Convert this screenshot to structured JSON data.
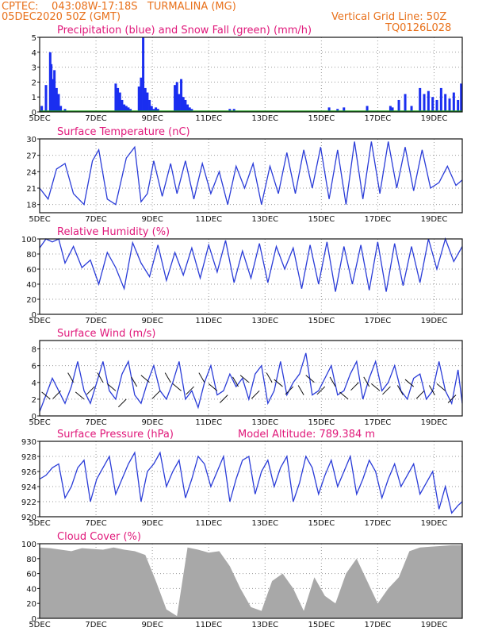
{
  "header": {
    "line1": "CPTEC:    043:08W-17:18S   TURMALINA (MG)",
    "line2": "05DEC2020 50Z (GMT)",
    "grid_note": "Vertical Grid Line: 50Z",
    "model_id": "TQ0126L028"
  },
  "colors": {
    "title_orange": "#e8701a",
    "panel_title": "#e0187a",
    "line": "#2a3cd8",
    "precip": "#1a2ef0",
    "snow": "#1aa01a",
    "cloud": "#a8a8a8",
    "grid": "#9a9a9a"
  },
  "chart_data": [
    {
      "type": "bar",
      "title": "Precipitation (blue) and Snow Fall (green) (mm/h)",
      "yticks": [
        "5",
        "4",
        "3",
        "2",
        "1",
        "0"
      ],
      "ylim": [
        0,
        5
      ],
      "xticks": [
        "5DEC",
        "7DEC",
        "9DEC",
        "11DEC",
        "13DEC",
        "15DEC",
        "17DEC",
        "19DEC"
      ],
      "grid": true,
      "series": [
        {
          "name": "Precipitation",
          "x": [
            0.1,
            0.3,
            0.5,
            0.55,
            0.65,
            0.7,
            0.75,
            0.8,
            0.85,
            0.9,
            1.0,
            1.2,
            3.6,
            3.7,
            3.8,
            3.9,
            4.0,
            4.1,
            4.2,
            4.3,
            4.7,
            4.8,
            4.9,
            5.0,
            5.1,
            5.2,
            5.3,
            5.4,
            5.5,
            5.6,
            6.4,
            6.5,
            6.6,
            6.7,
            6.8,
            6.9,
            7.0,
            7.1,
            7.2,
            9.0,
            9.2,
            13.7,
            14.1,
            14.4,
            15.5,
            16.6,
            16.7,
            17.0,
            17.3,
            17.6,
            18.0,
            18.2,
            18.4,
            18.6,
            18.8,
            19.0,
            19.2,
            19.4,
            19.6,
            19.8,
            19.95
          ],
          "values": [
            0.4,
            1.8,
            4.0,
            3.2,
            2.2,
            2.8,
            1.4,
            1.6,
            0.9,
            1.2,
            0.4,
            0.2,
            1.9,
            1.6,
            1.3,
            0.8,
            0.5,
            0.4,
            0.3,
            0.2,
            1.7,
            2.3,
            5.0,
            1.6,
            1.3,
            0.8,
            0.4,
            0.2,
            0.3,
            0.2,
            1.8,
            2.0,
            1.2,
            2.2,
            1.0,
            0.8,
            0.5,
            0.3,
            0.2,
            0.2,
            0.2,
            0.3,
            0.2,
            0.3,
            0.4,
            0.4,
            0.3,
            0.8,
            1.2,
            0.4,
            1.6,
            1.2,
            1.4,
            1.0,
            0.8,
            1.6,
            1.2,
            0.9,
            1.3,
            0.8,
            1.9
          ]
        },
        {
          "name": "Snow Fall",
          "x": [
            0,
            20
          ],
          "values": [
            0,
            0
          ]
        }
      ]
    },
    {
      "type": "line",
      "title": "Surface Temperature (nC)",
      "yticks": [
        "30",
        "27",
        "24",
        "21",
        "18"
      ],
      "ylim": [
        16.5,
        30
      ],
      "xticks": [
        "5DEC",
        "7DEC",
        "9DEC",
        "11DEC",
        "13DEC",
        "15DEC",
        "17DEC",
        "19DEC"
      ],
      "grid": true,
      "series": [
        {
          "name": "Temperature",
          "x": [
            0,
            0.4,
            0.8,
            1.2,
            1.6,
            2.1,
            2.5,
            2.8,
            3.2,
            3.6,
            4.1,
            4.5,
            4.8,
            5.1,
            5.4,
            5.8,
            6.2,
            6.5,
            6.9,
            7.3,
            7.7,
            8.1,
            8.5,
            8.9,
            9.3,
            9.7,
            10.1,
            10.5,
            10.9,
            11.3,
            11.7,
            12.1,
            12.5,
            12.9,
            13.3,
            13.7,
            14.1,
            14.5,
            14.9,
            15.3,
            15.7,
            16.1,
            16.5,
            16.9,
            17.3,
            17.7,
            18.1,
            18.5,
            18.9,
            19.3,
            19.7,
            20
          ],
          "values": [
            21,
            19,
            24.5,
            25.5,
            20,
            18,
            26,
            28,
            19,
            18,
            26.5,
            28.5,
            18.5,
            20,
            26,
            19.5,
            25.5,
            20,
            26,
            19,
            25.5,
            20,
            24,
            18,
            25,
            21,
            25.5,
            18,
            25,
            20,
            27.5,
            20,
            28,
            21,
            28.5,
            19,
            28,
            18,
            29.5,
            19,
            29.5,
            20,
            29.5,
            21,
            28.5,
            20.5,
            28,
            21,
            22,
            25,
            21.5,
            22.5
          ]
        }
      ]
    },
    {
      "type": "line",
      "title": "Relative Humidity (%)",
      "yticks": [
        "100",
        "80",
        "60",
        "40",
        "20",
        "0"
      ],
      "ylim": [
        0,
        100
      ],
      "xticks": [
        "5DEC",
        "7DEC",
        "9DEC",
        "11DEC",
        "13DEC",
        "15DEC",
        "17DEC",
        "19DEC"
      ],
      "grid": true,
      "series": [
        {
          "name": "Humidity",
          "x": [
            0,
            0.3,
            0.6,
            0.9,
            1.2,
            1.6,
            2.0,
            2.4,
            2.8,
            3.2,
            3.6,
            4.0,
            4.4,
            4.8,
            5.2,
            5.6,
            6.0,
            6.4,
            6.8,
            7.2,
            7.6,
            8.0,
            8.4,
            8.8,
            9.2,
            9.6,
            10.0,
            10.4,
            10.8,
            11.2,
            11.6,
            12.0,
            12.4,
            12.8,
            13.2,
            13.6,
            14.0,
            14.4,
            14.8,
            15.2,
            15.6,
            16.0,
            16.4,
            16.8,
            17.2,
            17.6,
            18.0,
            18.4,
            18.8,
            19.2,
            19.6,
            20
          ],
          "values": [
            88,
            100,
            96,
            100,
            68,
            90,
            62,
            72,
            40,
            82,
            62,
            34,
            95,
            68,
            50,
            92,
            45,
            82,
            52,
            88,
            48,
            92,
            56,
            98,
            42,
            84,
            48,
            94,
            42,
            90,
            60,
            88,
            34,
            92,
            40,
            96,
            30,
            90,
            40,
            92,
            32,
            96,
            30,
            94,
            38,
            90,
            42,
            100,
            60,
            100,
            70,
            90
          ]
        }
      ]
    },
    {
      "type": "line",
      "title": "Surface Wind (m/s)",
      "yticks": [
        "8",
        "6",
        "4",
        "2",
        "0"
      ],
      "ylim": [
        0,
        9
      ],
      "xticks": [
        "5DEC",
        "7DEC",
        "9DEC",
        "11DEC",
        "13DEC",
        "15DEC",
        "17DEC",
        "19DEC"
      ],
      "grid": true,
      "series": [
        {
          "name": "Wind speed",
          "x": [
            0,
            0.3,
            0.6,
            0.9,
            1.2,
            1.5,
            1.8,
            2.1,
            2.4,
            2.7,
            3.0,
            3.3,
            3.6,
            3.9,
            4.2,
            4.5,
            4.8,
            5.1,
            5.4,
            5.7,
            6.0,
            6.3,
            6.6,
            6.9,
            7.2,
            7.5,
            7.8,
            8.1,
            8.4,
            8.7,
            9.0,
            9.3,
            9.6,
            9.9,
            10.2,
            10.5,
            10.8,
            11.1,
            11.4,
            11.7,
            12.0,
            12.3,
            12.6,
            12.9,
            13.2,
            13.5,
            13.8,
            14.1,
            14.4,
            14.7,
            15.0,
            15.3,
            15.6,
            15.9,
            16.2,
            16.5,
            16.8,
            17.1,
            17.4,
            17.7,
            18.0,
            18.3,
            18.6,
            18.9,
            19.2,
            19.5,
            19.8,
            20
          ],
          "values": [
            0.5,
            2.5,
            4.5,
            3,
            1.5,
            3.5,
            6.5,
            3,
            1.5,
            4,
            6.5,
            3,
            2,
            5,
            6.5,
            2.5,
            1.5,
            4,
            6,
            3,
            2,
            4,
            6.5,
            2,
            3,
            1,
            4,
            6,
            2.5,
            3,
            5,
            3.5,
            4.5,
            2,
            5,
            6,
            1.5,
            3,
            6.5,
            2.5,
            4,
            5,
            7.5,
            2.5,
            3,
            4.5,
            6,
            2.5,
            3,
            5,
            6.5,
            2,
            4.5,
            6.5,
            3,
            4,
            6,
            3,
            2,
            4.5,
            5,
            2,
            3,
            6.5,
            3,
            1.5,
            5.5,
            1.5
          ]
        },
        {
          "name": "Wind vectors",
          "x": [
            0.5,
            1.0,
            1.6,
            2.1,
            2.6,
            3.0,
            3.6,
            4.1,
            4.6,
            5.2,
            5.7,
            6.2,
            6.7,
            7.3,
            7.8,
            8.4,
            8.9,
            9.4,
            9.9,
            10.4,
            11.0,
            11.5,
            12.0,
            12.5,
            13.0,
            13.5,
            14.0,
            14.6,
            15.1,
            15.6,
            16.1,
            16.6,
            17.2,
            17.7,
            18.2,
            18.7,
            19.2,
            19.7
          ],
          "values": [
            2,
            3,
            4,
            2,
            3.5,
            4,
            3,
            2,
            3.5,
            4,
            3,
            4,
            3,
            3.5,
            4,
            3,
            2.5,
            3.5,
            4,
            3,
            4,
            3.5,
            3.5,
            2.5,
            4,
            3.5,
            3.5,
            2,
            4,
            3.5,
            3,
            3.5,
            2.5,
            3.5,
            3,
            2.5,
            3,
            2.5
          ]
        }
      ]
    },
    {
      "type": "line",
      "title": "Surface Pressure (hPa)",
      "annotation": "Model Altitude: 789.384  m",
      "yticks": [
        "930",
        "928",
        "926",
        "924",
        "922",
        "920"
      ],
      "ylim": [
        920,
        930
      ],
      "xticks": [
        "5DEC",
        "7DEC",
        "9DEC",
        "11DEC",
        "13DEC",
        "15DEC",
        "17DEC",
        "19DEC"
      ],
      "grid": true,
      "series": [
        {
          "name": "Pressure",
          "x": [
            0,
            0.3,
            0.6,
            0.9,
            1.2,
            1.5,
            1.8,
            2.1,
            2.4,
            2.7,
            3.0,
            3.3,
            3.6,
            3.9,
            4.2,
            4.5,
            4.8,
            5.1,
            5.4,
            5.7,
            6.0,
            6.3,
            6.6,
            6.9,
            7.2,
            7.5,
            7.8,
            8.1,
            8.4,
            8.7,
            9.0,
            9.3,
            9.6,
            9.9,
            10.2,
            10.5,
            10.8,
            11.1,
            11.4,
            11.7,
            12.0,
            12.3,
            12.6,
            12.9,
            13.2,
            13.5,
            13.8,
            14.1,
            14.4,
            14.7,
            15.0,
            15.3,
            15.6,
            15.9,
            16.2,
            16.5,
            16.8,
            17.1,
            17.4,
            17.7,
            18.0,
            18.3,
            18.6,
            18.9,
            19.2,
            19.5,
            19.8,
            20
          ],
          "values": [
            925,
            925.5,
            926.5,
            927,
            922.5,
            924,
            926.5,
            927.5,
            922,
            925,
            926.5,
            928,
            923,
            925,
            927,
            928.5,
            922,
            926,
            927,
            928.5,
            924,
            926,
            927.5,
            922.5,
            925,
            928,
            927,
            924,
            926,
            928,
            922,
            925,
            927.5,
            928,
            923,
            926,
            927.5,
            924,
            926.5,
            928,
            922,
            924.5,
            928,
            926.5,
            923,
            925.5,
            927.5,
            924,
            926,
            928,
            923,
            925,
            927.5,
            926,
            922.5,
            925,
            927,
            924,
            925.5,
            927,
            923,
            924.5,
            926,
            921,
            924,
            920.5,
            921.5,
            922
          ]
        }
      ]
    },
    {
      "type": "area",
      "title": "Cloud Cover (%)",
      "yticks": [
        "100",
        "80",
        "60",
        "40",
        "20",
        "0"
      ],
      "ylim": [
        0,
        100
      ],
      "xticks": [
        "5DEC",
        "7DEC",
        "9DEC",
        "11DEC",
        "13DEC",
        "15DEC",
        "17DEC",
        "19DEC"
      ],
      "grid": true,
      "series": [
        {
          "name": "Cloud cover",
          "x": [
            0,
            0.5,
            1,
            1.5,
            2,
            2.5,
            3,
            3.5,
            4,
            4.5,
            5,
            5.5,
            6,
            6.5,
            7,
            7.5,
            8,
            8.5,
            9,
            9.5,
            10,
            10.5,
            11,
            11.5,
            12,
            12.5,
            13,
            13.5,
            14,
            14.5,
            15,
            15.5,
            16,
            16.5,
            17,
            17.5,
            18,
            18.5,
            19,
            19.5,
            20
          ],
          "values": [
            95,
            94,
            92,
            90,
            94,
            93,
            92,
            95,
            92,
            90,
            85,
            50,
            12,
            3,
            95,
            92,
            88,
            90,
            70,
            40,
            15,
            10,
            50,
            60,
            40,
            10,
            55,
            30,
            20,
            60,
            80,
            50,
            20,
            40,
            55,
            90,
            95,
            96,
            97,
            98,
            98
          ]
        }
      ]
    }
  ]
}
